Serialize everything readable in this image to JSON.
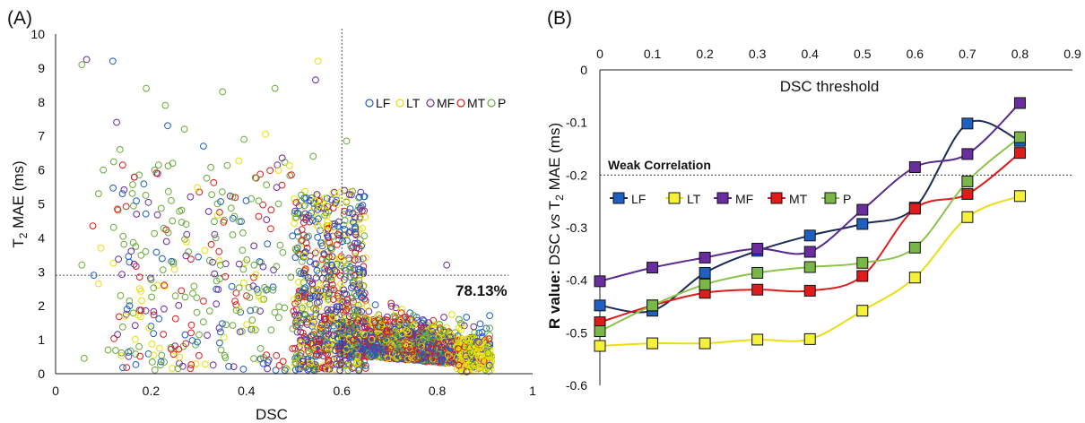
{
  "chart_data": [
    {
      "panel": "(A)",
      "type": "scatter",
      "xlabel": "DSC",
      "ylabel_main": "T",
      "ylabel_sub": "2",
      "ylabel_tail": " MAE (ms)",
      "xlim": [
        0,
        1
      ],
      "ylim": [
        0,
        10
      ],
      "xticks": [
        "0",
        "0.2",
        "0.4",
        "0.6",
        "0.8",
        "1"
      ],
      "xtick_values": [
        0,
        0.2,
        0.4,
        0.6,
        0.8,
        1
      ],
      "yticks": [
        "0",
        "1",
        "2",
        "3",
        "4",
        "5",
        "6",
        "7",
        "8",
        "9",
        "10"
      ],
      "ytick_values": [
        0,
        1,
        2,
        3,
        4,
        5,
        6,
        7,
        8,
        9,
        10
      ],
      "threshold_x": 0.6,
      "threshold_y": 2.9,
      "annotation": "78.13%",
      "legend_position": "top-right",
      "series": [
        {
          "name": "LF",
          "color": "#1f5fbf"
        },
        {
          "name": "LT",
          "color": "#e8e000"
        },
        {
          "name": "MF",
          "color": "#6a2d9f"
        },
        {
          "name": "MT",
          "color": "#e01b1b"
        },
        {
          "name": "P",
          "color": "#6aaa3a"
        }
      ],
      "outliers": [
        {
          "series": "MF",
          "x": 0.065,
          "y": 9.25
        },
        {
          "series": "P",
          "x": 0.055,
          "y": 9.1
        },
        {
          "series": "LF",
          "x": 0.12,
          "y": 9.2
        },
        {
          "series": "LT",
          "x": 0.55,
          "y": 9.2
        },
        {
          "series": "MF",
          "x": 0.545,
          "y": 8.65
        },
        {
          "series": "P",
          "x": 0.19,
          "y": 8.4
        },
        {
          "series": "P",
          "x": 0.35,
          "y": 8.3
        },
        {
          "series": "P",
          "x": 0.46,
          "y": 8.4
        },
        {
          "series": "P",
          "x": 0.23,
          "y": 7.9
        },
        {
          "series": "MF",
          "x": 0.128,
          "y": 7.4
        },
        {
          "series": "LF",
          "x": 0.235,
          "y": 7.3
        },
        {
          "series": "P",
          "x": 0.27,
          "y": 7.2
        },
        {
          "series": "LT",
          "x": 0.44,
          "y": 7.05
        },
        {
          "series": "P",
          "x": 0.395,
          "y": 6.9
        },
        {
          "series": "LF",
          "x": 0.31,
          "y": 6.7
        },
        {
          "series": "P",
          "x": 0.135,
          "y": 6.6
        },
        {
          "series": "P",
          "x": 0.61,
          "y": 6.85
        },
        {
          "series": "MF",
          "x": 0.475,
          "y": 6.35
        },
        {
          "series": "P",
          "x": 0.54,
          "y": 6.4
        },
        {
          "series": "P",
          "x": 0.1,
          "y": 6.0
        },
        {
          "series": "P",
          "x": 0.175,
          "y": 5.85
        },
        {
          "series": "P",
          "x": 0.09,
          "y": 5.3
        },
        {
          "series": "LF",
          "x": 0.14,
          "y": 5.3
        },
        {
          "series": "MT",
          "x": 0.078,
          "y": 4.35
        },
        {
          "series": "LT",
          "x": 0.095,
          "y": 3.7
        },
        {
          "series": "P",
          "x": 0.055,
          "y": 3.2
        },
        {
          "series": "LF",
          "x": 0.08,
          "y": 2.9
        },
        {
          "series": "LT",
          "x": 0.09,
          "y": 2.65
        },
        {
          "series": "LF",
          "x": 0.155,
          "y": 2.0
        },
        {
          "series": "P",
          "x": 0.06,
          "y": 0.45
        },
        {
          "series": "P",
          "x": 0.11,
          "y": 0.7
        },
        {
          "series": "P",
          "x": 0.175,
          "y": 0.8
        },
        {
          "series": "MF",
          "x": 0.82,
          "y": 3.2
        }
      ]
    },
    {
      "panel": "(B)",
      "type": "line",
      "xlabel": "DSC threshold",
      "ylabel_bold": "R value:",
      "ylabel_mid": " DSC ",
      "ylabel_italic": "vs",
      "ylabel_tail": " T",
      "ylabel_sub": "2",
      "ylabel_end": " MAE (ms)",
      "xlim": [
        0,
        0.9
      ],
      "ylim": [
        -0.6,
        0
      ],
      "xticks": [
        "0",
        "0.1",
        "0.2",
        "0.3",
        "0.4",
        "0.5",
        "0.6",
        "0.7",
        "0.8",
        "0.9"
      ],
      "xtick_values": [
        0,
        0.1,
        0.2,
        0.3,
        0.4,
        0.5,
        0.6,
        0.7,
        0.8,
        0.9
      ],
      "yticks": [
        "0",
        "-0.1",
        "-0.2",
        "-0.3",
        "-0.4",
        "-0.5",
        "-0.6"
      ],
      "ytick_values": [
        0,
        -0.1,
        -0.2,
        -0.3,
        -0.4,
        -0.5,
        -0.6
      ],
      "x": [
        0,
        0.1,
        0.2,
        0.3,
        0.4,
        0.5,
        0.6,
        0.7,
        0.8
      ],
      "reference_line": {
        "y": -0.2,
        "label": "Weak Correlation"
      },
      "legend_position": "center-left",
      "series": [
        {
          "name": "LF",
          "color": "#1f5fbf",
          "line": "#1c2a55",
          "values": [
            -0.448,
            -0.458,
            -0.386,
            -0.344,
            -0.315,
            -0.293,
            -0.262,
            -0.102,
            -0.135
          ]
        },
        {
          "name": "LT",
          "color": "#f5f03a",
          "line": "#e8de10",
          "values": [
            -0.525,
            -0.52,
            -0.52,
            -0.513,
            -0.512,
            -0.458,
            -0.395,
            -0.28,
            -0.24
          ]
        },
        {
          "name": "MF",
          "color": "#6a2d9f",
          "line": "#5a2a8f",
          "values": [
            -0.402,
            -0.376,
            -0.357,
            -0.34,
            -0.346,
            -0.266,
            -0.185,
            -0.16,
            -0.063
          ]
        },
        {
          "name": "MT",
          "color": "#e01b1b",
          "line": "#e01b1b",
          "values": [
            -0.48,
            -0.448,
            -0.424,
            -0.418,
            -0.42,
            -0.392,
            -0.264,
            -0.236,
            -0.158
          ]
        },
        {
          "name": "P",
          "color": "#7ab648",
          "line": "#8cc34a",
          "values": [
            -0.497,
            -0.448,
            -0.408,
            -0.386,
            -0.375,
            -0.367,
            -0.338,
            -0.212,
            -0.128
          ]
        }
      ]
    }
  ]
}
